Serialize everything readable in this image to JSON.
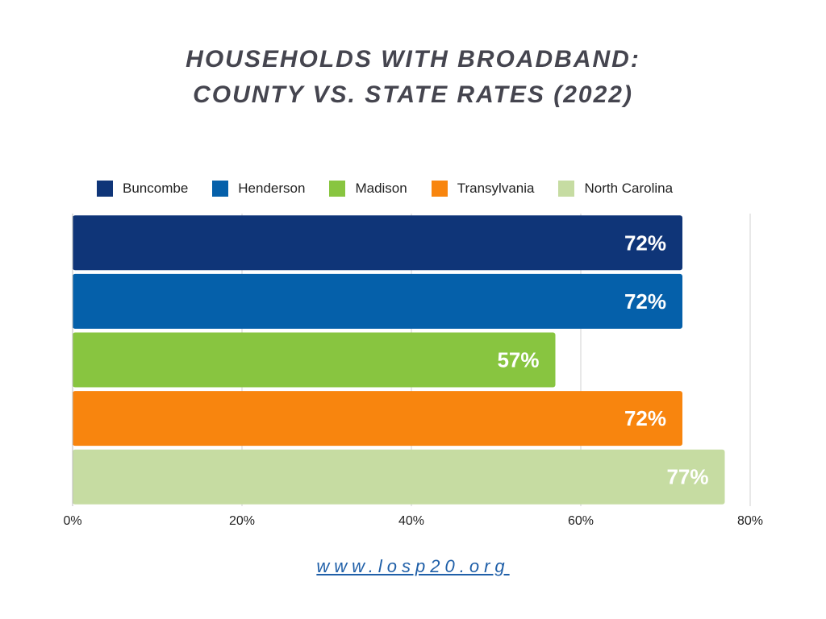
{
  "chart_data": {
    "type": "bar",
    "orientation": "horizontal",
    "title_lines": [
      "HOUSEHOLDS WITH BROADBAND:",
      "COUNTY VS. STATE RATES (2022)"
    ],
    "categories": [
      "Buncombe",
      "Henderson",
      "Madison",
      "Transylvania",
      "North Carolina"
    ],
    "values": [
      72,
      72,
      57,
      72,
      77
    ],
    "data_labels": [
      "72%",
      "72%",
      "57%",
      "72%",
      "77%"
    ],
    "colors": [
      "#0f3578",
      "#0560aa",
      "#88c540",
      "#f8850e",
      "#c6dca2"
    ],
    "xlim": [
      0,
      80
    ],
    "x_ticks": [
      0,
      20,
      40,
      60,
      80
    ],
    "x_tick_labels": [
      "0%",
      "20%",
      "40%",
      "60%",
      "80%"
    ],
    "grid": true,
    "legend_position": "top"
  },
  "footer": {
    "url_text": "www.losp20.org"
  }
}
